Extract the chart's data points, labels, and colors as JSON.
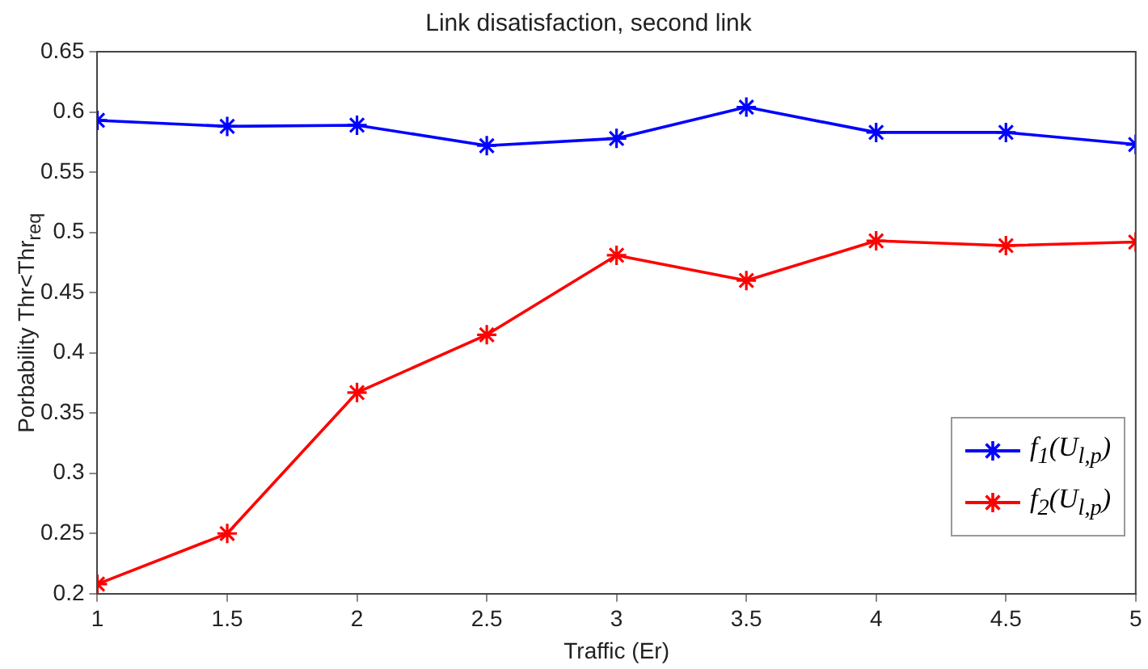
{
  "chart_data": {
    "type": "line",
    "title": "Link disatisfaction, second link",
    "xlabel": "Traffic (Er)",
    "ylabel": "Porbability Thr<Thr$_{req}$",
    "x": [
      1,
      1.5,
      2,
      2.5,
      3,
      3.5,
      4,
      4.5,
      5
    ],
    "series": [
      {
        "name": "f$_{1}$(U$_{l,p}$)",
        "color": "#0000ff",
        "values": [
          0.593,
          0.588,
          0.589,
          0.572,
          0.578,
          0.604,
          0.583,
          0.583,
          0.573
        ]
      },
      {
        "name": "f$_{2}$(U$_{l,p}$)",
        "color": "#ff0000",
        "values": [
          0.208,
          0.25,
          0.367,
          0.415,
          0.481,
          0.46,
          0.493,
          0.489,
          0.492
        ]
      }
    ],
    "xlim": [
      1,
      5
    ],
    "xticks": [
      1,
      1.5,
      2,
      2.5,
      3,
      3.5,
      4,
      4.5,
      5
    ],
    "ylim": [
      0.2,
      0.65
    ],
    "yticks": [
      0.2,
      0.25,
      0.3,
      0.35,
      0.4,
      0.45,
      0.5,
      0.55,
      0.6,
      0.65
    ],
    "grid": false,
    "legend": "right",
    "marker": "cross",
    "line_style": "solid"
  }
}
